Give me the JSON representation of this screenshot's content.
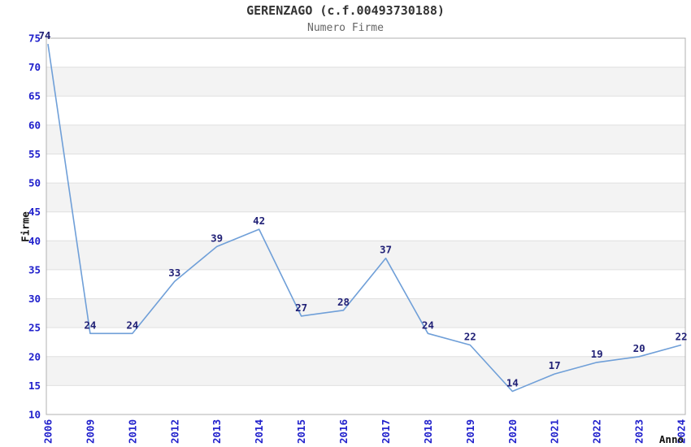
{
  "header": {
    "title": "GERENZAGO (c.f.00493730188)",
    "subtitle": "Numero Firme"
  },
  "chart_data": {
    "type": "line",
    "title": "GERENZAGO (c.f.00493730188)",
    "subtitle": "Numero Firme",
    "xlabel": "Anno",
    "ylabel": "Firme",
    "categories": [
      "2006",
      "2009",
      "2010",
      "2012",
      "2013",
      "2014",
      "2015",
      "2016",
      "2017",
      "2018",
      "2019",
      "2020",
      "2021",
      "2022",
      "2023",
      "2024"
    ],
    "values": [
      74,
      24,
      24,
      33,
      39,
      42,
      27,
      28,
      37,
      24,
      22,
      14,
      17,
      19,
      20,
      22
    ],
    "ylim": [
      10,
      75
    ],
    "ytick_step": 5,
    "yticks": [
      10,
      15,
      20,
      25,
      30,
      35,
      40,
      45,
      50,
      55,
      60,
      65,
      70,
      75
    ],
    "grid": true,
    "alternating_bands": true,
    "xtick_rotation": 90,
    "legend_position": "none",
    "point_labels_visible": true,
    "colors": {
      "line": "#6f9fd8",
      "tick_label": "#2020cc",
      "point_label": "#222277",
      "band": "#f3f3f3",
      "gridline": "#e0e0e0",
      "border": "#b0b0b0",
      "title": "#333333",
      "subtitle": "#666666",
      "axis_title": "#111111",
      "background": "#ffffff"
    }
  }
}
